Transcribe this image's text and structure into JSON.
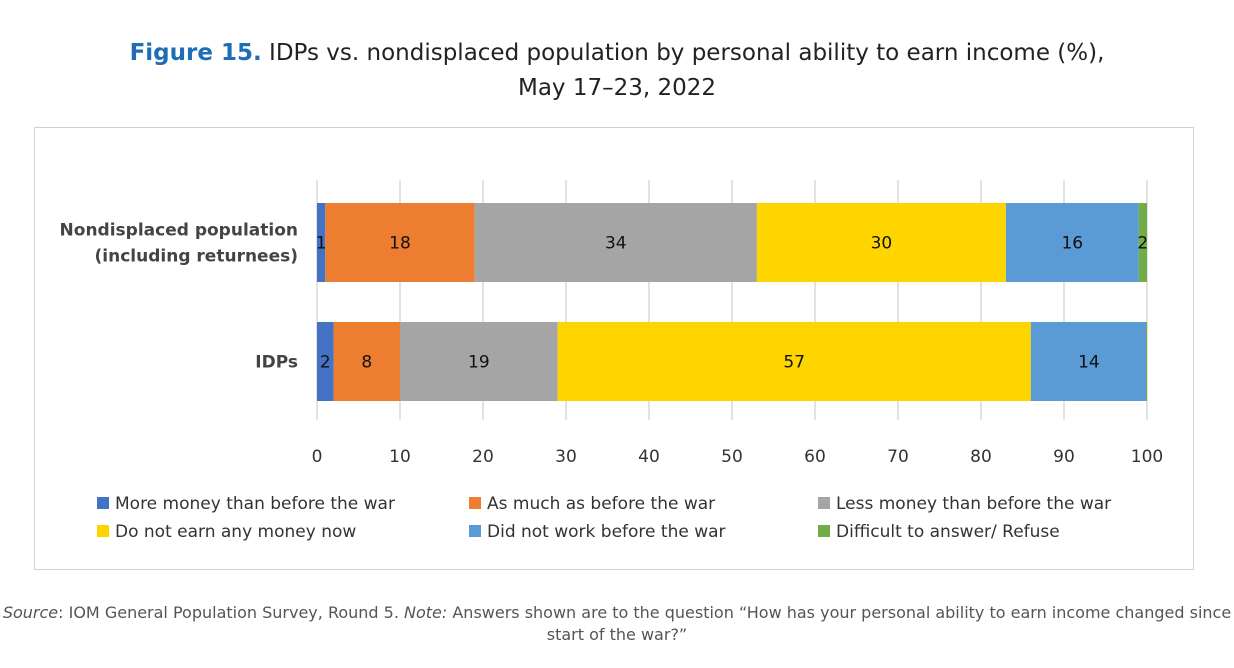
{
  "chart_data": {
    "type": "bar",
    "orientation": "horizontal",
    "stacked": true,
    "title_prefix": "Figure 15.",
    "title": "IDPs vs. nondisplaced population by personal ability to earn income (%),",
    "subtitle": "May 17–23, 2022",
    "categories": [
      "Nondisplaced population (including returnees)",
      "IDPs"
    ],
    "category_lines": [
      [
        "Nondisplaced population",
        "(including returnees)"
      ],
      [
        "IDPs"
      ]
    ],
    "series": [
      {
        "name": "More money than before the war",
        "color": "#4472c4",
        "values": [
          1,
          2
        ]
      },
      {
        "name": "As much as before the war",
        "color": "#ed7d31",
        "values": [
          18,
          8
        ]
      },
      {
        "name": "Less money than before the war",
        "color": "#a5a5a5",
        "values": [
          34,
          19
        ]
      },
      {
        "name": "Do not earn any money now",
        "color": "#ffd500",
        "values": [
          30,
          57
        ]
      },
      {
        "name": "Did not work before the war",
        "color": "#5b9bd5",
        "values": [
          16,
          14
        ]
      },
      {
        "name": "Difficult to answer/ Refuse",
        "color": "#70ad47",
        "values": [
          2,
          0
        ]
      }
    ],
    "xlim": [
      0,
      100
    ],
    "xticks": [
      0,
      10,
      20,
      30,
      40,
      50,
      60,
      70,
      80,
      90,
      100
    ],
    "grid": true,
    "legend_position": "bottom"
  },
  "source": {
    "label": "Source",
    "text": ": IOM General Population Survey, Round 5. ",
    "note_label": "Note:",
    "note_text": " Answers shown are to the question “How has your personal ability to earn income changed since start of the war?”"
  }
}
